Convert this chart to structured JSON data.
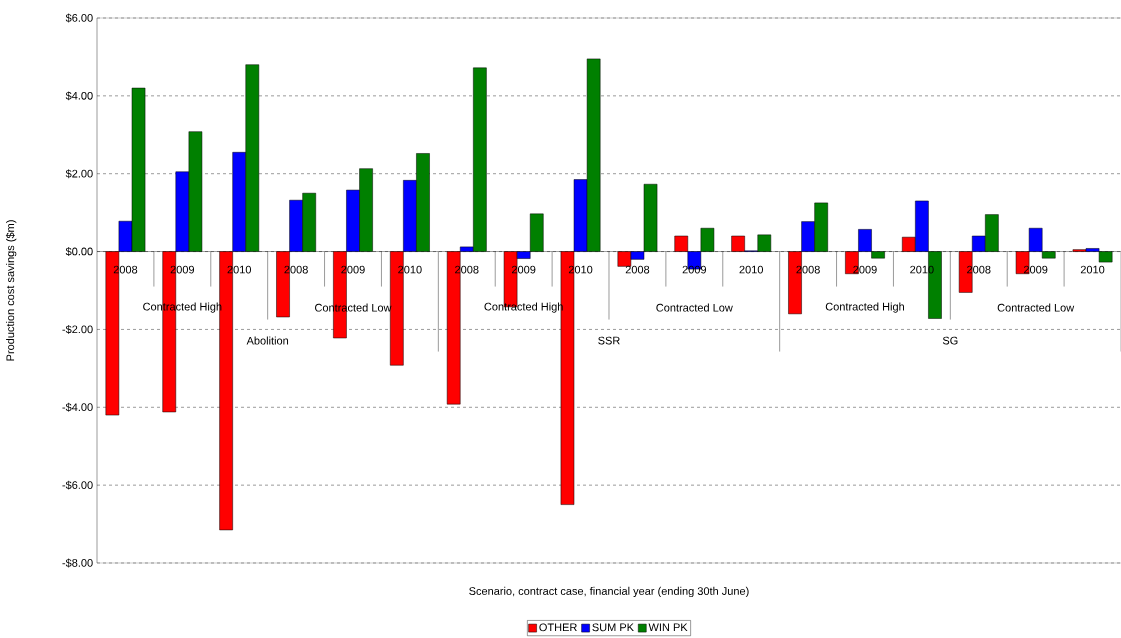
{
  "chart_data": {
    "type": "bar",
    "xlabel": "Scenario, contract case, financial year (ending 30th June)",
    "ylabel": "Production cost savings ($m)",
    "categories": [
      "2008",
      "2009",
      "2010",
      "2008",
      "2009",
      "2010",
      "2008",
      "2009",
      "2010",
      "2008",
      "2009",
      "2010",
      "2008",
      "2009",
      "2010",
      "2008",
      "2009",
      "2010"
    ],
    "annotations": [
      "Contracted High",
      "Contracted Low",
      "Contracted High",
      "Contracted Low",
      "Contracted High",
      "Contracted Low",
      "Abolition",
      "SSR",
      "SG"
    ],
    "series": [
      {
        "name": "OTHER",
        "color": "#ff0000",
        "values": [
          -4.2,
          -4.12,
          -7.15,
          -1.68,
          -2.22,
          -2.92,
          -3.92,
          -1.42,
          -6.5,
          -0.38,
          0.4,
          0.4,
          -1.6,
          -0.57,
          0.37,
          -1.05,
          -0.57,
          0.05
        ]
      },
      {
        "name": "SUM PK",
        "color": "#0000ff",
        "values": [
          0.78,
          2.05,
          2.55,
          1.32,
          1.58,
          1.83,
          0.12,
          -0.18,
          1.85,
          -0.2,
          -0.45,
          0.02,
          0.77,
          0.57,
          1.3,
          0.4,
          0.6,
          0.08
        ]
      },
      {
        "name": "WIN PK",
        "color": "#008000",
        "values": [
          4.2,
          3.08,
          4.8,
          1.5,
          2.13,
          2.52,
          4.72,
          0.97,
          4.95,
          1.73,
          0.6,
          0.43,
          1.25,
          -0.17,
          -1.72,
          0.95,
          -0.17,
          -0.27
        ]
      }
    ],
    "ylim": [
      -8,
      6
    ],
    "yticks": [
      {
        "value": -8,
        "label": "-$8.00"
      },
      {
        "value": -6,
        "label": "-$6.00"
      },
      {
        "value": -4,
        "label": "-$4.00"
      },
      {
        "value": -2,
        "label": "-$2.00"
      },
      {
        "value": 0,
        "label": "$0.00"
      },
      {
        "value": 2,
        "label": "$2.00"
      },
      {
        "value": 4,
        "label": "$4.00"
      },
      {
        "value": 6,
        "label": "$6.00"
      }
    ],
    "grid": "y",
    "legend": "bottom"
  }
}
